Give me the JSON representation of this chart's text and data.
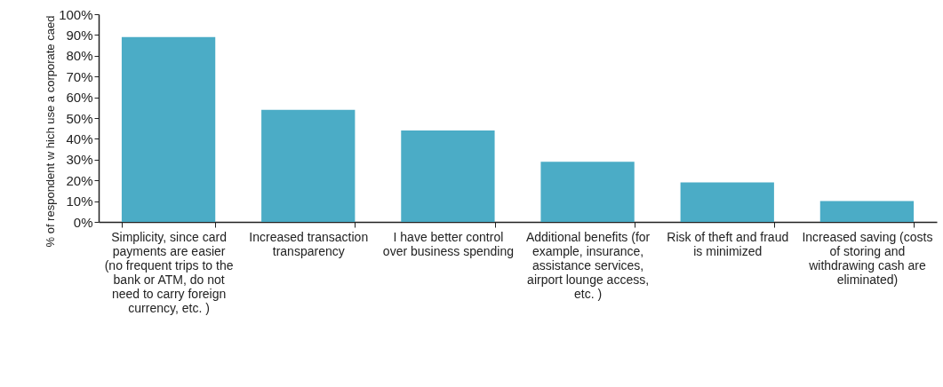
{
  "chart_data": {
    "type": "bar",
    "ylabel": "% of respondent w hich use a corporate caed",
    "categories": [
      "Simplicity, since card payments are easier (no frequent trips to the bank or ATM, do not need to carry foreign currency, etc. )",
      "Increased transaction transparency",
      "I have better control over business spending",
      "Additional benefits (for example, insurance, assistance services, airport lounge access, etc. )",
      "Risk of theft and fraud is minimized",
      "Increased saving (costs of storing and withdrawing cash are eliminated)"
    ],
    "values": [
      89,
      54,
      44,
      29,
      19,
      10
    ],
    "color": "#4bacc6",
    "ylim": [
      0,
      100
    ],
    "yticks": [
      {
        "value": 0,
        "label": "0%"
      },
      {
        "value": 10,
        "label": "10%"
      },
      {
        "value": 20,
        "label": "20%"
      },
      {
        "value": 30,
        "label": "30%"
      },
      {
        "value": 40,
        "label": "40%"
      },
      {
        "value": 50,
        "label": "50%"
      },
      {
        "value": 60,
        "label": "60%"
      },
      {
        "value": 70,
        "label": "70%"
      },
      {
        "value": 80,
        "label": "80%"
      },
      {
        "value": 90,
        "label": "90%"
      },
      {
        "value": 100,
        "label": "100%"
      }
    ],
    "grid": false
  }
}
